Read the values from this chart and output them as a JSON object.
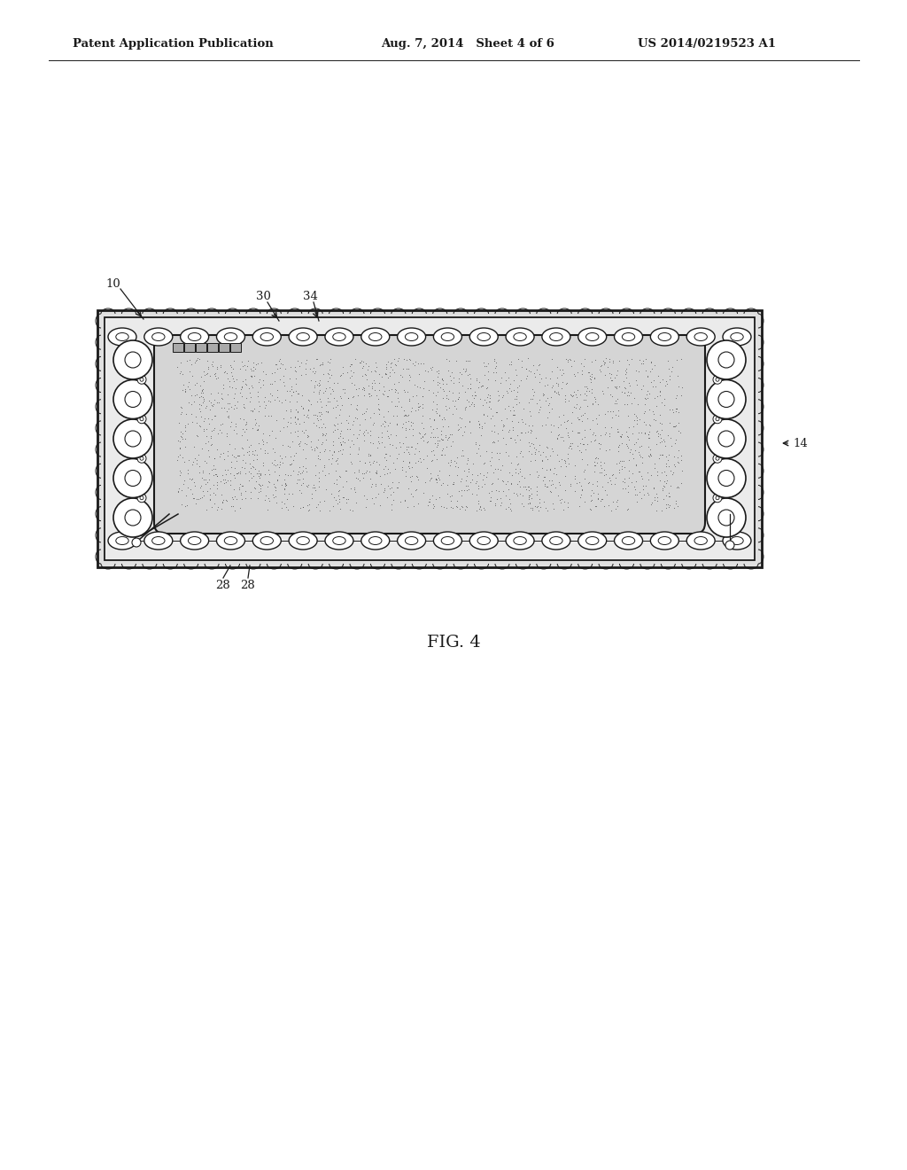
{
  "bg_color": "#ffffff",
  "line_color": "#1a1a1a",
  "header_text_left": "Patent Application Publication",
  "header_text_mid": "Aug. 7, 2014   Sheet 4 of 6",
  "header_text_right": "US 2014/0219523 A1",
  "fig_label": "FIG. 4",
  "label_10": "10",
  "label_14": "14",
  "label_28a": "28",
  "label_28b": "28",
  "label_30": "30",
  "label_34": "34"
}
